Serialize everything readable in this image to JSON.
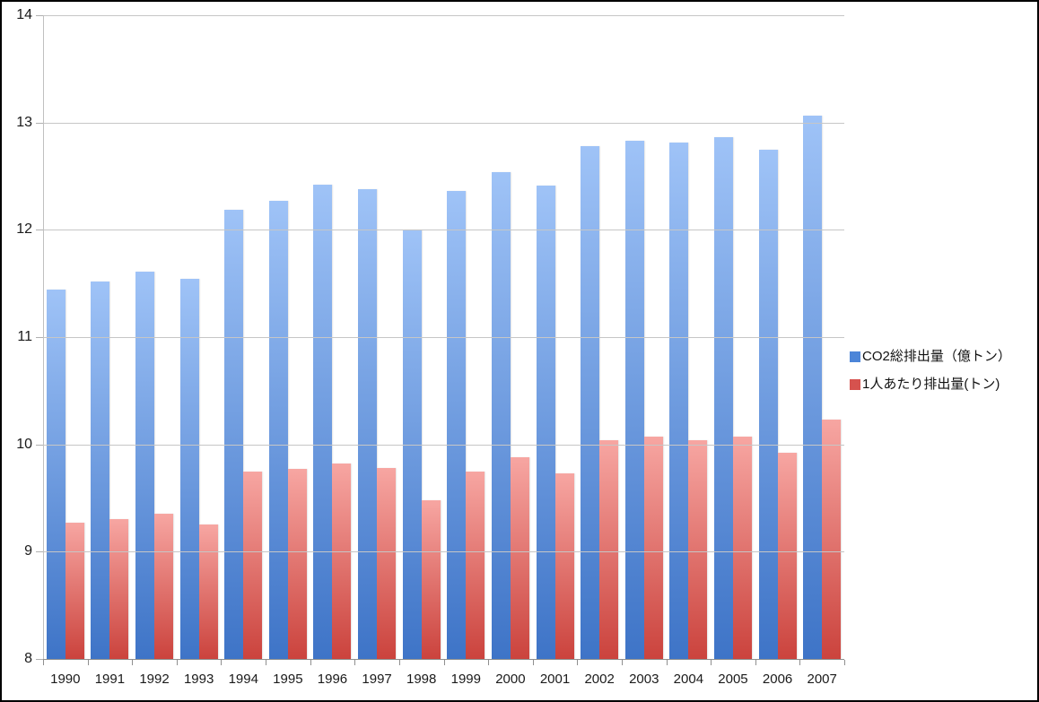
{
  "chart_data": {
    "type": "bar",
    "title": "",
    "xlabel": "",
    "ylabel": "",
    "categories": [
      "1990",
      "1991",
      "1992",
      "1993",
      "1994",
      "1995",
      "1996",
      "1997",
      "1998",
      "1999",
      "2000",
      "2001",
      "2002",
      "2003",
      "2004",
      "2005",
      "2006",
      "2007"
    ],
    "series": [
      {
        "name": "CO2総排出量（億トン）",
        "values": [
          11.44,
          11.52,
          11.61,
          11.54,
          12.19,
          12.27,
          12.42,
          12.38,
          12.0,
          12.36,
          12.54,
          12.41,
          12.78,
          12.83,
          12.81,
          12.86,
          12.75,
          13.06
        ],
        "color_top": "#9fc3f7",
        "color_bottom": "#3e74c7",
        "legend_color": "#4c85d8"
      },
      {
        "name": "1人あたり排出量(トン)",
        "values": [
          9.27,
          9.3,
          9.35,
          9.25,
          9.75,
          9.77,
          9.82,
          9.78,
          9.48,
          9.75,
          9.88,
          9.73,
          10.04,
          10.07,
          10.04,
          10.07,
          9.92,
          10.23
        ],
        "color_top": "#f7a6a2",
        "color_bottom": "#cb433d",
        "legend_color": "#d6524e"
      }
    ],
    "ylim": [
      8,
      14
    ],
    "yticks": [
      8,
      9,
      10,
      11,
      12,
      13,
      14
    ],
    "grid": true,
    "legend_position": "right-middle"
  },
  "colors": {
    "background": "#ffffff",
    "border": "#000000",
    "gridline": "#c6c6c6",
    "axis": "#8f8f8f",
    "text": "#1a1a1a"
  }
}
